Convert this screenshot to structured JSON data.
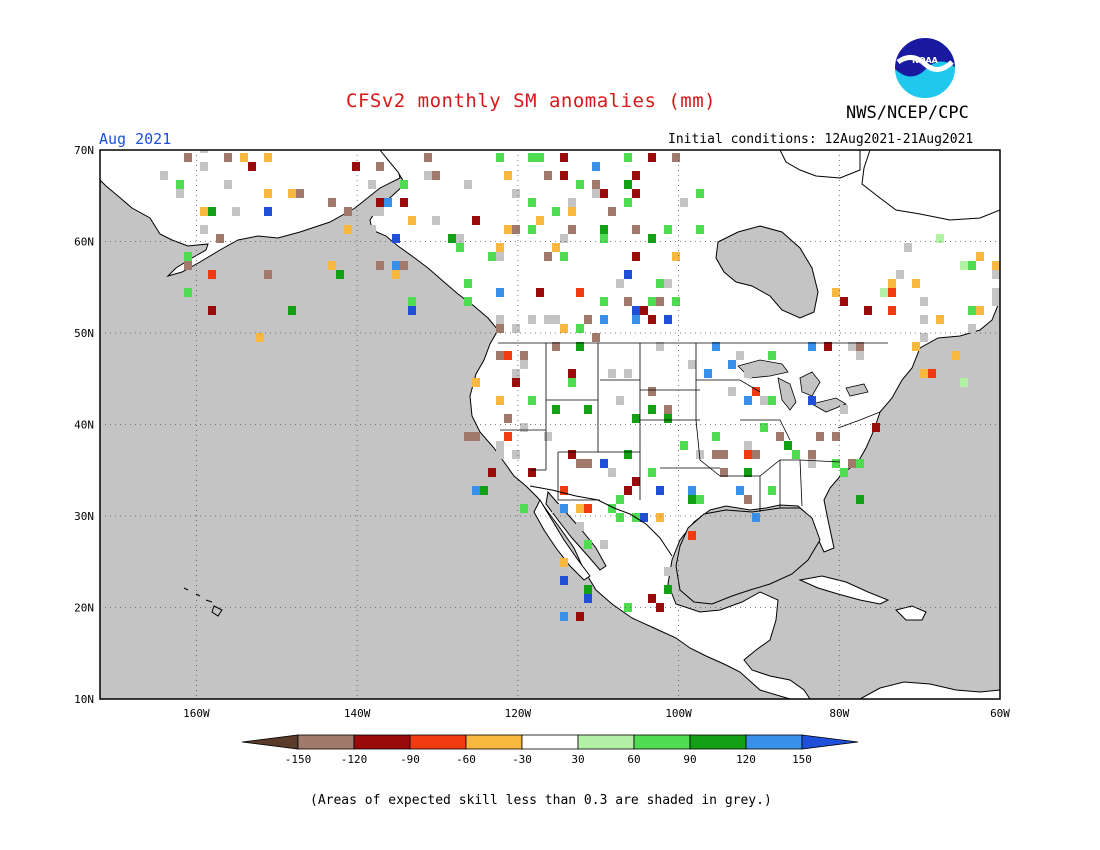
{
  "title": "CFSv2 monthly SM anomalies (mm)",
  "agency": "NWS/NCEP/CPC",
  "logo_text": "NOAA",
  "valid_month": "Aug 2021",
  "initial_conditions": "Initial conditions: 12Aug2021-21Aug2021",
  "footnote": "(Areas of expected skill less than 0.3 are shaded in grey.)",
  "map": {
    "lon_range": [
      -172,
      -60
    ],
    "lat_range": [
      10,
      70
    ],
    "lat_labels": [
      "70N",
      "60N",
      "50N",
      "40N",
      "30N",
      "20N",
      "10N"
    ],
    "lon_labels": [
      "160W",
      "140W",
      "120W",
      "100W",
      "80W",
      "60W"
    ],
    "grid_style": "dotted",
    "colors": {
      "ocean_low_skill": "#c4c4c4",
      "land_no_anomaly": "#ffffff"
    }
  },
  "legend": {
    "tick_labels": [
      "-150",
      "-120",
      "-90",
      "-60",
      "-30",
      "30",
      "60",
      "90",
      "120",
      "150"
    ],
    "colors": [
      "#5a3a28",
      "#a17a6c",
      "#9a0c0c",
      "#f03a10",
      "#f8b840",
      "#ffffff",
      "#b2f0a6",
      "#50dc50",
      "#14a014",
      "#3890e8",
      "#2050d8"
    ]
  }
}
